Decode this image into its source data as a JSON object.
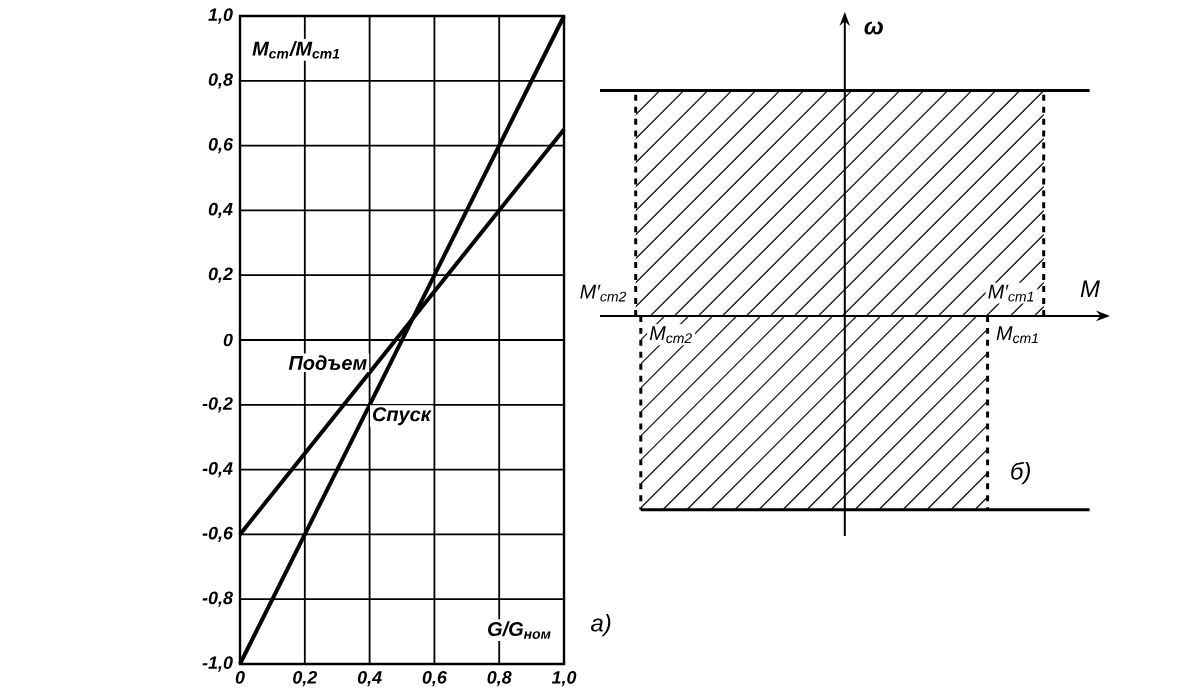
{
  "chart_data": [
    {
      "type": "line",
      "xlabel": "G/G$_{ном}$",
      "ylabel": "M$_{ст}$/M$_{ст1}$",
      "xlim": [
        0,
        1.0
      ],
      "ylim": [
        -1.0,
        1.0
      ],
      "xticks": [
        0,
        {
          "value": 0.2,
          "label": "0,2"
        },
        {
          "value": 0.4,
          "label": "0,4"
        },
        {
          "value": 0.6,
          "label": "0,6"
        },
        {
          "value": 0.8,
          "label": "0,8"
        },
        {
          "value": 1.0,
          "label": "1,0"
        }
      ],
      "yticks": [
        {
          "value": -1.0,
          "label": "-1,0"
        },
        {
          "value": -0.8,
          "label": "-0,8"
        },
        {
          "value": -0.6,
          "label": "-0,6"
        },
        {
          "value": -0.4,
          "label": "-0,4"
        },
        {
          "value": -0.2,
          "label": "-0,2"
        },
        {
          "value": 0,
          "label": "0"
        },
        {
          "value": 0.2,
          "label": "0,2"
        },
        {
          "value": 0.4,
          "label": "0,4"
        },
        {
          "value": 0.6,
          "label": "0,6"
        },
        {
          "value": 0.8,
          "label": "0,8"
        },
        {
          "value": 1.0,
          "label": "1,0"
        }
      ],
      "grid": true,
      "annotations": [
        "а)"
      ],
      "series": [
        {
          "name": "Подъем",
          "color": "#000000",
          "x": [
            0,
            0.4,
            1.0
          ],
          "values": [
            -0.6,
            -0.1,
            0.65
          ]
        },
        {
          "name": "Спуск",
          "color": "#000000",
          "x": [
            0,
            0.4,
            1.0
          ],
          "values": [
            -1.0,
            -0.2,
            1.0
          ]
        }
      ]
    },
    {
      "type": "other",
      "xlabel": "M",
      "ylabel": "ω",
      "annotations": [
        "M′$_{ст2}$",
        "M′$_{ст1}$",
        "M$_{ст2}$",
        "M$_{ст1}$",
        "б)"
      ]
    }
  ]
}
